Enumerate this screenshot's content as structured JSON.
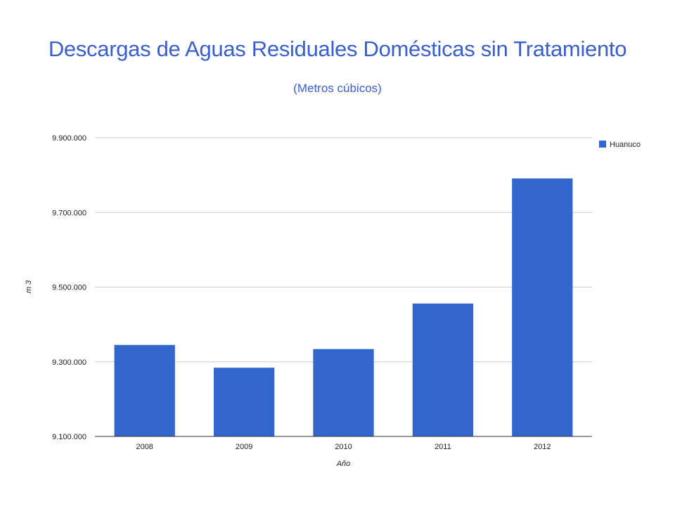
{
  "chart_data": {
    "type": "bar",
    "title": "Descargas de Aguas Residuales Domésticas sin Tratamiento",
    "subtitle": "(Metros cúbicos)",
    "xlabel": "Año",
    "ylabel": "m 3",
    "categories": [
      "2008",
      "2009",
      "2010",
      "2011",
      "2012"
    ],
    "series": [
      {
        "name": "Huanuco",
        "values": [
          9345000,
          9284000,
          9334000,
          9456000,
          9791000
        ],
        "color": "#3366cc"
      }
    ],
    "ylim": [
      9100000,
      9900000
    ],
    "yticks": [
      9100000,
      9300000,
      9500000,
      9700000,
      9900000
    ],
    "ytick_labels": [
      "9.100.000",
      "9.300.000",
      "9.500.000",
      "9.700.000",
      "9.900.000"
    ],
    "grid": true,
    "legend": "right",
    "colors": {
      "bar": "#3366cc",
      "grid": "#cccccc",
      "axis": "#333333",
      "title": "#3a5fcd"
    }
  }
}
